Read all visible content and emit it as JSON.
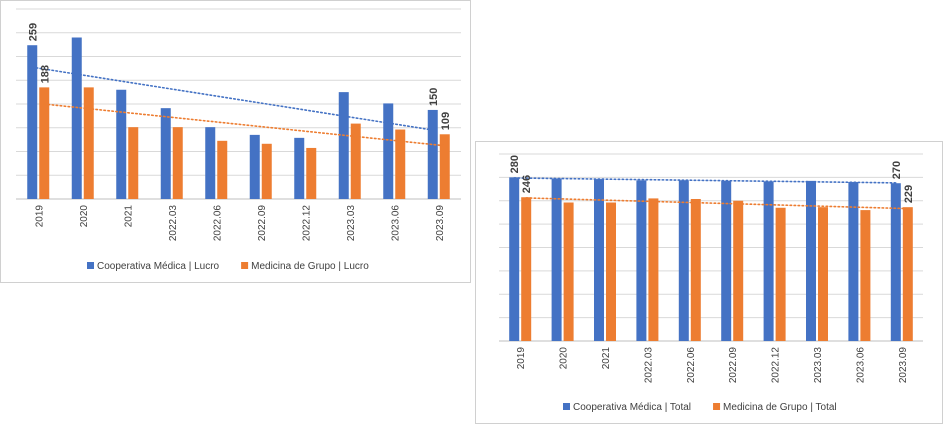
{
  "chart_data": [
    {
      "type": "bar",
      "categories": [
        "2019",
        "2020",
        "2021",
        "2022.03",
        "2022.06",
        "2022.09",
        "2022.12",
        "2023.03",
        "2023.06",
        "2023.09"
      ],
      "series": [
        {
          "name": "Cooperativa Médica | Lucro",
          "color": "#4472c4",
          "values": [
            259,
            272,
            184,
            153,
            121,
            108,
            103,
            180,
            161,
            150
          ]
        },
        {
          "name": "Medicina de Grupo | Lucro",
          "color": "#ed7d31",
          "values": [
            188,
            188,
            121,
            121,
            98,
            93,
            86,
            127,
            117,
            109
          ]
        }
      ],
      "data_labels": [
        {
          "series": 0,
          "index": 0,
          "text": "259"
        },
        {
          "series": 1,
          "index": 0,
          "text": "188"
        },
        {
          "series": 0,
          "index": 9,
          "text": "150"
        },
        {
          "series": 1,
          "index": 9,
          "text": "109"
        }
      ],
      "trendlines": "linear, dotted, one per series",
      "ylim": [
        0,
        320
      ],
      "grid": true,
      "legend": "bottom"
    },
    {
      "type": "bar",
      "categories": [
        "2019",
        "2020",
        "2021",
        "2022.03",
        "2022.06",
        "2022.09",
        "2022.12",
        "2023.03",
        "2023.06",
        "2023.09"
      ],
      "series": [
        {
          "name": "Cooperativa Médica | Total",
          "color": "#4472c4",
          "values": [
            280,
            278,
            277,
            275,
            275,
            274,
            273,
            274,
            272,
            270
          ]
        },
        {
          "name": "Medicina de Grupo | Total",
          "color": "#ed7d31",
          "values": [
            246,
            237,
            237,
            244,
            243,
            240,
            228,
            229,
            224,
            229
          ]
        }
      ],
      "data_labels": [
        {
          "series": 0,
          "index": 0,
          "text": "280"
        },
        {
          "series": 1,
          "index": 0,
          "text": "246"
        },
        {
          "series": 0,
          "index": 9,
          "text": "270"
        },
        {
          "series": 1,
          "index": 9,
          "text": "229"
        }
      ],
      "trendlines": "linear, dotted, one per series",
      "ylim": [
        0,
        320
      ],
      "grid": true,
      "legend": "bottom"
    }
  ]
}
